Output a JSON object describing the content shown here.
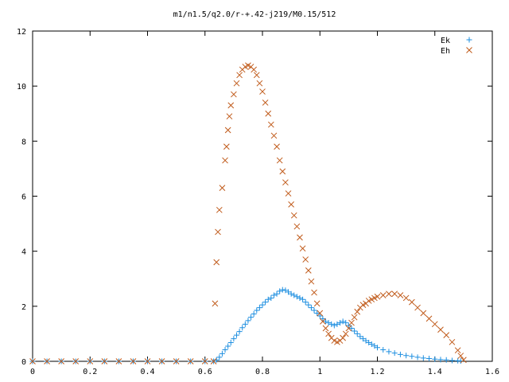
{
  "chart_data": {
    "type": "scatter",
    "title": "m1/n1.5/q2.0/r-+.42-j219/M0.15/512",
    "xlabel": "",
    "ylabel": "",
    "xlim": [
      0,
      1.6
    ],
    "ylim": [
      0,
      12
    ],
    "x_ticks": [
      "0",
      "0.2",
      "0.4",
      "0.6",
      "0.8",
      "1",
      "1.2",
      "1.4",
      "1.6"
    ],
    "y_ticks": [
      "0",
      "2",
      "4",
      "6",
      "8",
      "10",
      "12"
    ],
    "grid": false,
    "legend_position": "top-right",
    "series": [
      {
        "name": "Ek",
        "marker": "plus",
        "color": "#1e8fe0",
        "points": [
          [
            0.0,
            0.0
          ],
          [
            0.05,
            0.0
          ],
          [
            0.1,
            0.0
          ],
          [
            0.15,
            0.0
          ],
          [
            0.2,
            0.0
          ],
          [
            0.25,
            0.0
          ],
          [
            0.3,
            0.0
          ],
          [
            0.35,
            0.0
          ],
          [
            0.4,
            0.0
          ],
          [
            0.45,
            0.0
          ],
          [
            0.5,
            0.0
          ],
          [
            0.55,
            0.0
          ],
          [
            0.6,
            0.0
          ],
          [
            0.63,
            0.0
          ],
          [
            0.64,
            0.05
          ],
          [
            0.65,
            0.15
          ],
          [
            0.66,
            0.28
          ],
          [
            0.67,
            0.42
          ],
          [
            0.68,
            0.55
          ],
          [
            0.69,
            0.68
          ],
          [
            0.7,
            0.82
          ],
          [
            0.71,
            0.95
          ],
          [
            0.72,
            1.08
          ],
          [
            0.73,
            1.22
          ],
          [
            0.74,
            1.35
          ],
          [
            0.75,
            1.48
          ],
          [
            0.76,
            1.6
          ],
          [
            0.77,
            1.72
          ],
          [
            0.78,
            1.85
          ],
          [
            0.79,
            1.95
          ],
          [
            0.8,
            2.05
          ],
          [
            0.81,
            2.15
          ],
          [
            0.82,
            2.25
          ],
          [
            0.83,
            2.3
          ],
          [
            0.84,
            2.4
          ],
          [
            0.85,
            2.45
          ],
          [
            0.86,
            2.55
          ],
          [
            0.87,
            2.6
          ],
          [
            0.88,
            2.58
          ],
          [
            0.89,
            2.52
          ],
          [
            0.9,
            2.45
          ],
          [
            0.91,
            2.4
          ],
          [
            0.92,
            2.35
          ],
          [
            0.93,
            2.3
          ],
          [
            0.94,
            2.25
          ],
          [
            0.95,
            2.15
          ],
          [
            0.96,
            2.05
          ],
          [
            0.97,
            1.95
          ],
          [
            0.98,
            1.85
          ],
          [
            0.99,
            1.75
          ],
          [
            1.0,
            1.65
          ],
          [
            1.01,
            1.55
          ],
          [
            1.02,
            1.45
          ],
          [
            1.03,
            1.4
          ],
          [
            1.04,
            1.35
          ],
          [
            1.05,
            1.3
          ],
          [
            1.06,
            1.35
          ],
          [
            1.07,
            1.4
          ],
          [
            1.08,
            1.45
          ],
          [
            1.09,
            1.4
          ],
          [
            1.1,
            1.3
          ],
          [
            1.11,
            1.2
          ],
          [
            1.12,
            1.1
          ],
          [
            1.13,
            1.0
          ],
          [
            1.14,
            0.9
          ],
          [
            1.15,
            0.82
          ],
          [
            1.16,
            0.75
          ],
          [
            1.17,
            0.68
          ],
          [
            1.18,
            0.62
          ],
          [
            1.19,
            0.56
          ],
          [
            1.2,
            0.5
          ],
          [
            1.22,
            0.42
          ],
          [
            1.24,
            0.35
          ],
          [
            1.26,
            0.3
          ],
          [
            1.28,
            0.25
          ],
          [
            1.3,
            0.21
          ],
          [
            1.32,
            0.18
          ],
          [
            1.34,
            0.15
          ],
          [
            1.36,
            0.12
          ],
          [
            1.38,
            0.1
          ],
          [
            1.4,
            0.08
          ],
          [
            1.42,
            0.06
          ],
          [
            1.44,
            0.05
          ],
          [
            1.46,
            0.03
          ],
          [
            1.48,
            0.02
          ],
          [
            1.49,
            0.01
          ]
        ]
      },
      {
        "name": "Eh",
        "marker": "cross",
        "color": "#c05a1a",
        "points": [
          [
            0.0,
            0.0
          ],
          [
            0.05,
            0.0
          ],
          [
            0.1,
            0.0
          ],
          [
            0.15,
            0.0
          ],
          [
            0.2,
            0.0
          ],
          [
            0.25,
            0.0
          ],
          [
            0.3,
            0.0
          ],
          [
            0.35,
            0.0
          ],
          [
            0.4,
            0.0
          ],
          [
            0.45,
            0.0
          ],
          [
            0.5,
            0.0
          ],
          [
            0.55,
            0.0
          ],
          [
            0.6,
            0.0
          ],
          [
            0.63,
            0.0
          ],
          [
            0.635,
            2.1
          ],
          [
            0.64,
            3.6
          ],
          [
            0.645,
            4.7
          ],
          [
            0.65,
            5.5
          ],
          [
            0.66,
            6.3
          ],
          [
            0.67,
            7.3
          ],
          [
            0.675,
            7.8
          ],
          [
            0.68,
            8.4
          ],
          [
            0.685,
            8.9
          ],
          [
            0.69,
            9.3
          ],
          [
            0.7,
            9.7
          ],
          [
            0.71,
            10.1
          ],
          [
            0.72,
            10.4
          ],
          [
            0.73,
            10.6
          ],
          [
            0.74,
            10.7
          ],
          [
            0.75,
            10.75
          ],
          [
            0.76,
            10.7
          ],
          [
            0.77,
            10.6
          ],
          [
            0.78,
            10.4
          ],
          [
            0.79,
            10.1
          ],
          [
            0.8,
            9.8
          ],
          [
            0.81,
            9.4
          ],
          [
            0.82,
            9.0
          ],
          [
            0.83,
            8.6
          ],
          [
            0.84,
            8.2
          ],
          [
            0.85,
            7.8
          ],
          [
            0.86,
            7.3
          ],
          [
            0.87,
            6.9
          ],
          [
            0.88,
            6.5
          ],
          [
            0.89,
            6.1
          ],
          [
            0.9,
            5.7
          ],
          [
            0.91,
            5.3
          ],
          [
            0.92,
            4.9
          ],
          [
            0.93,
            4.5
          ],
          [
            0.94,
            4.1
          ],
          [
            0.95,
            3.7
          ],
          [
            0.96,
            3.3
          ],
          [
            0.97,
            2.9
          ],
          [
            0.98,
            2.5
          ],
          [
            0.99,
            2.1
          ],
          [
            1.0,
            1.75
          ],
          [
            1.01,
            1.45
          ],
          [
            1.02,
            1.2
          ],
          [
            1.03,
            1.0
          ],
          [
            1.04,
            0.85
          ],
          [
            1.05,
            0.75
          ],
          [
            1.06,
            0.7
          ],
          [
            1.07,
            0.75
          ],
          [
            1.08,
            0.85
          ],
          [
            1.09,
            1.0
          ],
          [
            1.1,
            1.2
          ],
          [
            1.11,
            1.4
          ],
          [
            1.12,
            1.6
          ],
          [
            1.13,
            1.8
          ],
          [
            1.14,
            1.95
          ],
          [
            1.15,
            2.05
          ],
          [
            1.16,
            2.1
          ],
          [
            1.17,
            2.2
          ],
          [
            1.18,
            2.25
          ],
          [
            1.19,
            2.3
          ],
          [
            1.2,
            2.35
          ],
          [
            1.22,
            2.4
          ],
          [
            1.24,
            2.45
          ],
          [
            1.26,
            2.45
          ],
          [
            1.28,
            2.4
          ],
          [
            1.3,
            2.3
          ],
          [
            1.32,
            2.15
          ],
          [
            1.34,
            1.95
          ],
          [
            1.36,
            1.75
          ],
          [
            1.38,
            1.55
          ],
          [
            1.4,
            1.35
          ],
          [
            1.42,
            1.15
          ],
          [
            1.44,
            0.95
          ],
          [
            1.46,
            0.7
          ],
          [
            1.48,
            0.4
          ],
          [
            1.49,
            0.2
          ],
          [
            1.5,
            0.05
          ]
        ]
      }
    ]
  }
}
